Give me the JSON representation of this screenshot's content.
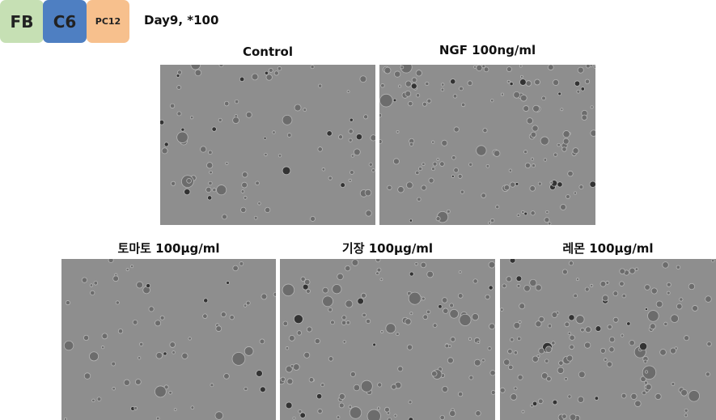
{
  "header": {
    "tags": [
      "FB",
      "C6",
      "PC12"
    ],
    "title": "Day9, *100"
  },
  "panels": [
    {
      "label": "Control"
    },
    {
      "label": "NGF 100ng/ml"
    },
    {
      "label": "토마토 100μg/ml"
    },
    {
      "label": "기장 100μg/ml"
    },
    {
      "label": "레몬 100μg/ml"
    }
  ]
}
